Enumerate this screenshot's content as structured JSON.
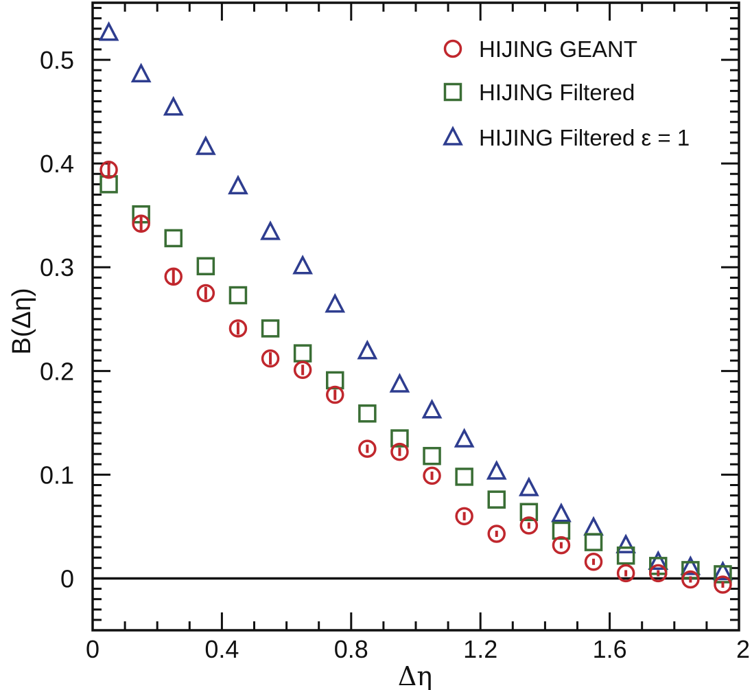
{
  "chart_data": {
    "type": "scatter",
    "title": "",
    "xlabel": "Δη",
    "ylabel": "B(Δη)",
    "xlim": [
      0,
      2
    ],
    "ylim": [
      -0.05,
      0.555
    ],
    "x_ticks": [
      0,
      0.4,
      0.8,
      1.2,
      1.6,
      2
    ],
    "x_tick_labels": [
      "0",
      "0.4",
      "0.8",
      "1.2",
      "1.6",
      "2"
    ],
    "y_ticks": [
      0,
      0.1,
      0.2,
      0.3,
      0.4,
      0.5
    ],
    "y_tick_labels": [
      "0",
      "0.1",
      "0.2",
      "0.3",
      "0.4",
      "0.5"
    ],
    "zero_line": true,
    "grid": false,
    "legend_position": "top-right",
    "x": [
      0.05,
      0.15,
      0.25,
      0.35,
      0.45,
      0.55,
      0.65,
      0.75,
      0.85,
      0.95,
      1.05,
      1.15,
      1.25,
      1.35,
      1.45,
      1.55,
      1.65,
      1.75,
      1.85,
      1.95
    ],
    "series": [
      {
        "name": "HIJING GEANT",
        "marker": "circle",
        "color": "#c0272d",
        "values": [
          0.394,
          0.342,
          0.291,
          0.275,
          0.241,
          0.212,
          0.201,
          0.177,
          0.125,
          0.122,
          0.099,
          0.06,
          0.043,
          0.051,
          0.032,
          0.016,
          0.005,
          0.005,
          -0.001,
          -0.006
        ],
        "errors": [
          0.008,
          0.007,
          0.008,
          0.006,
          0.006,
          0.006,
          0.005,
          0.005,
          0.004,
          0.004,
          0.004,
          0.004,
          0.003,
          0.003,
          0.003,
          0.003,
          0.003,
          0.003,
          0.003,
          0.003
        ]
      },
      {
        "name": "HIJING Filtered",
        "marker": "square",
        "color": "#3a6e35",
        "values": [
          0.38,
          0.351,
          0.328,
          0.301,
          0.273,
          0.241,
          0.217,
          0.191,
          0.159,
          0.135,
          0.118,
          0.098,
          0.076,
          0.064,
          0.046,
          0.035,
          0.022,
          0.012,
          0.008,
          0.004
        ]
      },
      {
        "name": "HIJING Filtered ε = 1",
        "marker": "triangle",
        "color": "#2e3d8f",
        "values": [
          0.526,
          0.486,
          0.454,
          0.416,
          0.378,
          0.334,
          0.301,
          0.264,
          0.219,
          0.187,
          0.162,
          0.134,
          0.103,
          0.087,
          0.062,
          0.049,
          0.032,
          0.016,
          0.011,
          0.006
        ]
      }
    ]
  }
}
